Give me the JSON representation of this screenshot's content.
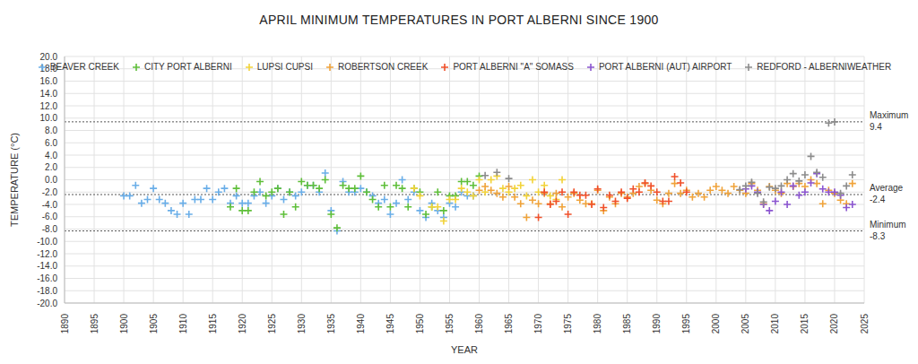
{
  "chart_data": {
    "type": "scatter",
    "title": "APRIL MINIMUM TEMPERATURES IN PORT ALBERNI SINCE 1900",
    "x_label": "YEAR",
    "y_label": "TEMPERATURE (°C)",
    "xlim": [
      1890,
      2025
    ],
    "xticks": [
      1890,
      1895,
      1900,
      1905,
      1910,
      1915,
      1920,
      1925,
      1930,
      1935,
      1940,
      1945,
      1950,
      1955,
      1960,
      1965,
      1970,
      1975,
      1980,
      1985,
      1990,
      1995,
      2000,
      2005,
      2010,
      2015,
      2020,
      2025
    ],
    "ylim": [
      -20,
      20
    ],
    "yticks": [
      {
        "value": -20,
        "label": "-20.0"
      },
      {
        "value": -18,
        "label": "-18.0"
      },
      {
        "value": -16,
        "label": "-16.0"
      },
      {
        "value": -14,
        "label": "-14.0"
      },
      {
        "value": -12,
        "label": "-12.0"
      },
      {
        "value": -10,
        "label": "-10.0"
      },
      {
        "value": -8,
        "label": "-8.0"
      },
      {
        "value": -6,
        "label": "-6.0"
      },
      {
        "value": -4,
        "label": "-4.0"
      },
      {
        "value": -2,
        "label": "-2.0"
      },
      {
        "value": 0,
        "label": "0.0"
      },
      {
        "value": 2,
        "label": "2.0"
      },
      {
        "value": 4,
        "label": "4.0"
      },
      {
        "value": 6,
        "label": "6.0"
      },
      {
        "value": 8,
        "label": "8.0"
      },
      {
        "value": 10,
        "label": "10.0"
      },
      {
        "value": 12,
        "label": "12.0"
      },
      {
        "value": 14,
        "label": "14.0"
      },
      {
        "value": 16,
        "label": "16.0"
      },
      {
        "value": 18,
        "label": "18.0"
      },
      {
        "value": 20,
        "label": "20.0"
      }
    ],
    "grid": true,
    "legend": "top",
    "annotations": [
      {
        "text": "Maximum",
        "y": 9.4
      },
      {
        "text": "Average",
        "y": -2.4
      },
      {
        "text": "Minimum",
        "y": -8.3
      }
    ],
    "series": [
      {
        "name": "BEAVER CREEK",
        "color": "#6aaee8",
        "marker": "plus",
        "x": [
          1900,
          1901,
          1902,
          1903,
          1904,
          1905,
          1906,
          1907,
          1908,
          1909,
          1910,
          1911,
          1912,
          1913,
          1914,
          1915,
          1916,
          1917,
          1918,
          1919,
          1920,
          1921,
          1922,
          1923,
          1924,
          1925,
          1926,
          1927,
          1928,
          1929,
          1930,
          1931,
          1932,
          1933,
          1934,
          1935,
          1936,
          1937,
          1938,
          1939,
          1940,
          1941,
          1942,
          1943,
          1944,
          1945,
          1946,
          1947,
          1948,
          1949,
          1950,
          1951,
          1952,
          1953,
          1954,
          1955,
          1956,
          1957,
          1958,
          1959
        ],
        "values": [
          -2.6,
          -2.6,
          -0.9,
          -3.8,
          -3.2,
          -1.4,
          -3.2,
          -3.8,
          -5.0,
          -5.6,
          -3.8,
          -5.6,
          -3.2,
          -3.2,
          -1.4,
          -3.2,
          -2.0,
          -1.4,
          -3.8,
          -2.6,
          -3.8,
          -3.8,
          -2.6,
          -2.0,
          -3.8,
          -2.6,
          -1.4,
          -3.2,
          -2.0,
          -2.6,
          -2.0,
          -0.9,
          -0.9,
          -2.0,
          1.1,
          -5.0,
          -8.3,
          -0.3,
          -2.0,
          -2.0,
          -1.4,
          -2.0,
          -2.6,
          -3.8,
          -3.2,
          -5.6,
          -3.8,
          0.0,
          -3.2,
          -2.0,
          -5.0,
          -6.1,
          -3.8,
          -5.0,
          -6.1,
          -3.8,
          -4.4,
          -2.0,
          -2.6,
          -2.6
        ]
      },
      {
        "name": "CITY PORT ALBERNI",
        "color": "#5fbf3a",
        "marker": "plus",
        "x": [
          1918,
          1919,
          1920,
          1921,
          1922,
          1923,
          1924,
          1925,
          1926,
          1927,
          1928,
          1929,
          1930,
          1931,
          1932,
          1933,
          1934,
          1935,
          1936,
          1937,
          1938,
          1939,
          1940,
          1941,
          1942,
          1943,
          1944,
          1945,
          1946,
          1947,
          1948,
          1949,
          1950,
          1951,
          1952,
          1953,
          1954,
          1955,
          1956,
          1957,
          1958,
          1959,
          1960
        ],
        "values": [
          -4.4,
          -1.4,
          -5.0,
          -5.0,
          -2.0,
          -0.3,
          -2.6,
          -2.0,
          -1.4,
          -5.6,
          -2.0,
          -4.4,
          -0.3,
          -0.9,
          -0.9,
          -1.4,
          0.0,
          -5.6,
          -7.8,
          -0.9,
          -1.4,
          -1.4,
          0.6,
          -2.0,
          -3.2,
          -4.4,
          -0.9,
          -4.4,
          -0.9,
          -1.4,
          -4.4,
          -1.4,
          -2.0,
          -5.6,
          -4.4,
          -2.0,
          -5.0,
          -2.6,
          -2.6,
          -0.3,
          -0.3,
          -0.9,
          0.6
        ]
      },
      {
        "name": "LUPSI CUPSI",
        "color": "#f2d33a",
        "marker": "plus",
        "x": [
          1949,
          1950,
          1952,
          1953,
          1954,
          1955,
          1956,
          1957,
          1958,
          1959,
          1960,
          1961,
          1962,
          1963,
          1964,
          1965,
          1966,
          1967,
          1968,
          1969,
          1970,
          1971,
          1972,
          1973,
          1974
        ],
        "values": [
          -1.4,
          -2.6,
          -4.4,
          -4.4,
          -6.7,
          -3.2,
          -3.2,
          -1.4,
          -2.0,
          -2.6,
          0.0,
          -2.0,
          0.0,
          0.6,
          -1.4,
          -2.0,
          -1.4,
          -0.9,
          -2.6,
          0.0,
          -2.0,
          -0.9,
          -2.6,
          -3.2,
          0.0
        ]
      },
      {
        "name": "ROBERTSON CREEK",
        "color": "#f0a33a",
        "marker": "plus",
        "x": [
          1960,
          1961,
          1962,
          1963,
          1964,
          1965,
          1966,
          1967,
          1968,
          1969,
          1970,
          1971,
          1972,
          1973,
          1974,
          1975,
          1976,
          1977,
          1978,
          1979,
          1980,
          1981,
          1982,
          1983,
          1984,
          1985,
          1986,
          1987,
          1988,
          1989,
          1990,
          1991,
          1992,
          1993,
          1994,
          1995,
          1996,
          1997,
          1998,
          1999,
          2000,
          2001,
          2002,
          2003,
          2004,
          2005,
          2006,
          2007,
          2008,
          2009,
          2010,
          2011,
          2012,
          2013,
          2014,
          2015,
          2016,
          2017,
          2018,
          2019,
          2020,
          2021,
          2022,
          2023
        ],
        "values": [
          -1.7,
          -1.1,
          -1.7,
          -2.2,
          -2.8,
          -1.1,
          -2.8,
          -3.9,
          -6.1,
          -3.3,
          -3.9,
          -2.2,
          -3.9,
          -2.2,
          -4.4,
          -2.8,
          -2.2,
          -3.3,
          -3.9,
          -3.9,
          -1.7,
          -5.0,
          -2.8,
          -3.9,
          -2.2,
          -2.8,
          -2.2,
          -1.1,
          -0.6,
          -1.7,
          -3.3,
          -3.9,
          -2.2,
          -0.6,
          -2.2,
          -1.7,
          -2.8,
          -2.2,
          -2.8,
          -1.7,
          -1.1,
          -1.7,
          -2.2,
          -1.1,
          -1.7,
          -2.2,
          -0.6,
          -1.7,
          -3.9,
          -1.1,
          -1.7,
          -2.2,
          -0.6,
          -1.1,
          -0.6,
          -1.1,
          0.0,
          -0.6,
          -3.9,
          -1.7,
          -2.2,
          -3.3,
          -3.9,
          -0.6
        ]
      },
      {
        "name": "PORT ALBERNI \"A\" SOMASS",
        "color": "#f0502a",
        "marker": "plus",
        "x": [
          1970,
          1971,
          1972,
          1973,
          1974,
          1975,
          1976,
          1977,
          1978,
          1979,
          1980,
          1981,
          1982,
          1983,
          1984,
          1985,
          1986,
          1987,
          1988,
          1989,
          1990,
          1991,
          1992,
          1993,
          1994,
          1995
        ],
        "values": [
          -6.1,
          -2.0,
          -4.0,
          -3.5,
          -2.0,
          -5.6,
          -2.0,
          -2.5,
          -2.5,
          -4.0,
          -1.5,
          -4.5,
          -2.5,
          -3.5,
          -2.0,
          -3.0,
          -1.5,
          -2.0,
          -0.5,
          -1.0,
          -2.0,
          -3.5,
          -3.5,
          0.5,
          -0.5,
          -2.0
        ]
      },
      {
        "name": "PORT ALBERNI (AUT) AIRPORT",
        "color": "#8b55d0",
        "marker": "plus",
        "x": [
          2005,
          2006,
          2007,
          2008,
          2009,
          2010,
          2011,
          2012,
          2013,
          2014,
          2015,
          2016,
          2017,
          2018,
          2019,
          2020,
          2021,
          2022,
          2023
        ],
        "values": [
          -1.5,
          -1.0,
          -2.0,
          -4.0,
          -5.0,
          -3.5,
          -2.0,
          -4.0,
          -1.0,
          -2.5,
          -2.0,
          -0.5,
          1.0,
          -1.5,
          -2.0,
          -2.0,
          -2.5,
          -4.5,
          -4.0
        ]
      },
      {
        "name": "REDFORD - ALBERNIWEATHER",
        "color": "#8c8c8c",
        "marker": "plus",
        "x": [
          1961,
          1963,
          1965,
          2004,
          2005,
          2006,
          2007,
          2008,
          2009,
          2010,
          2011,
          2012,
          2013,
          2014,
          2015,
          2016,
          2017,
          2018,
          2019,
          2020,
          2021,
          2022,
          2023
        ],
        "values": [
          0.7,
          1.2,
          0.2,
          -1.6,
          -1.0,
          -0.4,
          -2.2,
          -3.6,
          -1.2,
          -1.4,
          -1.0,
          0.0,
          1.0,
          -0.2,
          0.8,
          3.8,
          1.2,
          0.4,
          9.2,
          9.4,
          -2.2,
          -1.0,
          0.8
        ]
      }
    ]
  }
}
